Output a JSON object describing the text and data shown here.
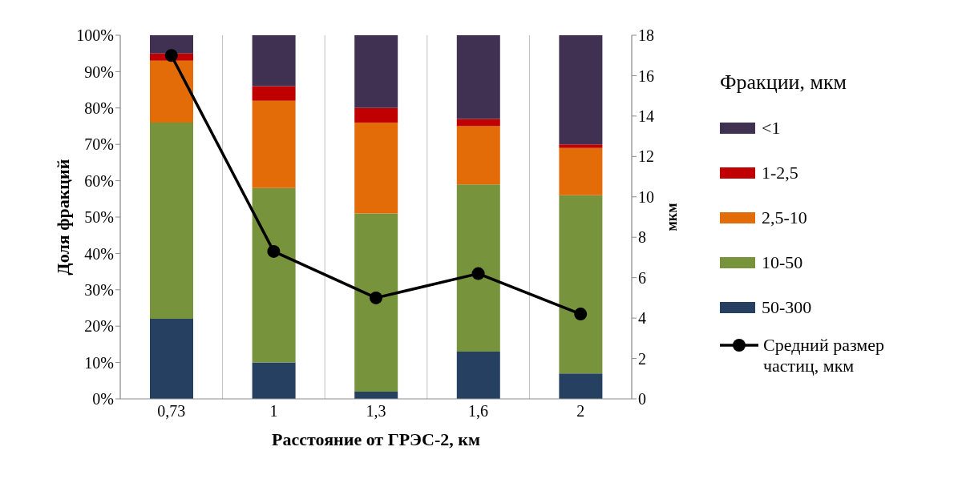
{
  "chart_data": {
    "type": "bar",
    "stacked": true,
    "xlabel": "Расстояние от  ГРЭС-2, км",
    "ylabel": "Доля фракций",
    "y2label": "мкм",
    "legend_title": "Фракции, мкм",
    "categories": [
      "0,73",
      "1",
      "1,3",
      "1,6",
      "2"
    ],
    "series": [
      {
        "name": "50-300",
        "color": "#254061",
        "values": [
          22,
          10,
          2,
          13,
          7
        ]
      },
      {
        "name": "10-50",
        "color": "#77933c",
        "values": [
          54,
          48,
          49,
          46,
          49
        ]
      },
      {
        "name": "2,5-10",
        "color": "#e36c09",
        "values": [
          17,
          24,
          25,
          16,
          13
        ]
      },
      {
        "name": "1-2,5",
        "color": "#c00000",
        "values": [
          2,
          4,
          4,
          2,
          1
        ]
      },
      {
        "name": "<1",
        "color": "#403152",
        "values": [
          5,
          14,
          20,
          23,
          30
        ]
      },
      {
        "name": "Средний размер частиц, мкм",
        "type": "line",
        "axis": "y2",
        "color": "#000000",
        "values": [
          17.0,
          7.3,
          5.0,
          6.2,
          4.2
        ]
      }
    ],
    "ylim": [
      0,
      100
    ],
    "yticks": [
      {
        "value": 0,
        "label": "0%"
      },
      {
        "value": 10,
        "label": "10%"
      },
      {
        "value": 20,
        "label": "20%"
      },
      {
        "value": 30,
        "label": "30%"
      },
      {
        "value": 40,
        "label": "40%"
      },
      {
        "value": 50,
        "label": "50%"
      },
      {
        "value": 60,
        "label": "60%"
      },
      {
        "value": 70,
        "label": "70%"
      },
      {
        "value": 80,
        "label": "80%"
      },
      {
        "value": 90,
        "label": "90%"
      },
      {
        "value": 100,
        "label": "100%"
      }
    ],
    "y2lim": [
      0,
      18
    ],
    "y2ticks": [
      0,
      2,
      4,
      6,
      8,
      10,
      12,
      14,
      16,
      18
    ],
    "grid": "x",
    "legend": "right",
    "marker": "circle",
    "line_style": "solid"
  }
}
